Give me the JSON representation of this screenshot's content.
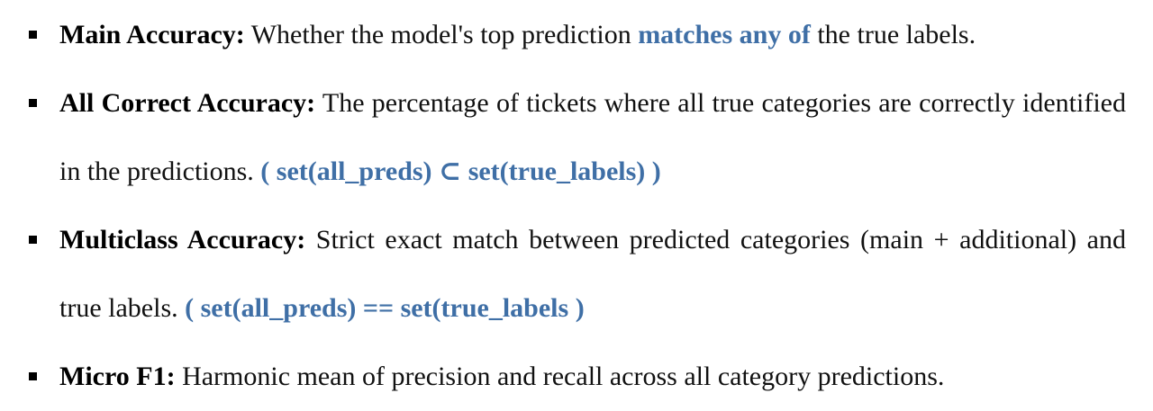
{
  "metrics": [
    {
      "term": "Main Accuracy:",
      "desc_before": " Whether the model's top prediction ",
      "highlight": "matches any of",
      "desc_after": " the true labels."
    },
    {
      "term": "All Correct Accuracy:",
      "description": " The percentage of tickets where all true categories are correctly identified in the predictions. ",
      "formula": "( set(all_preds) ⊂ set(true_labels) )"
    },
    {
      "term": "Multiclass Accuracy:",
      "description": " Strict exact match between predicted categories (main + additional) and true labels. ",
      "formula": "( set(all_preds) == set(true_labels )"
    },
    {
      "term": "Micro F1:",
      "description": " Harmonic mean of precision and recall across all category predictions."
    }
  ]
}
